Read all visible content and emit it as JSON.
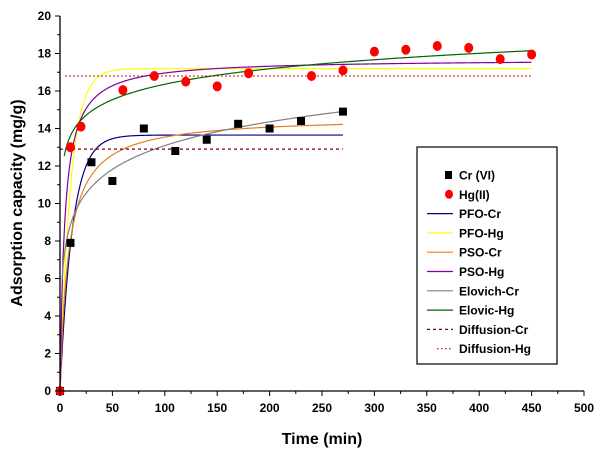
{
  "chart_data": {
    "type": "scatter",
    "title": "",
    "xlabel": "Time (min)",
    "ylabel": "Adsorption capacity (mg/g)",
    "xlim": [
      0,
      500
    ],
    "ylim": [
      0,
      20
    ],
    "xticks": [
      0,
      50,
      100,
      150,
      200,
      250,
      300,
      350,
      400,
      450,
      500
    ],
    "yticks": [
      0,
      2,
      4,
      6,
      8,
      10,
      12,
      14,
      16,
      18,
      20
    ],
    "grid": false,
    "legend_position": "right",
    "points": [
      {
        "name": "Cr (VI)",
        "marker": "square",
        "color": "#000000",
        "x": [
          0,
          10,
          30,
          50,
          80,
          110,
          140,
          170,
          200,
          230,
          270
        ],
        "y": [
          0,
          7.9,
          12.2,
          11.2,
          14.0,
          12.8,
          13.4,
          14.25,
          14.0,
          14.4,
          14.9
        ]
      },
      {
        "name": "Hg(II)",
        "marker": "circle",
        "color": "#ff0000",
        "x": [
          0,
          10,
          20,
          60,
          90,
          120,
          150,
          180,
          240,
          270,
          300,
          330,
          360,
          390,
          420,
          450
        ],
        "y": [
          0,
          13.0,
          14.1,
          16.05,
          16.8,
          16.5,
          16.25,
          16.95,
          16.8,
          17.1,
          18.1,
          18.2,
          18.4,
          18.3,
          17.7,
          17.95
        ]
      }
    ],
    "fits": [
      {
        "name": "PFO-Cr",
        "model": "pfo",
        "qe": 13.65,
        "k": 0.085,
        "xmax": 270,
        "color": "#000080",
        "style": "solid"
      },
      {
        "name": "PFO-Hg",
        "model": "pfo",
        "qe": 17.2,
        "k": 0.1,
        "xmax": 450,
        "color": "#ffff00",
        "style": "solid"
      },
      {
        "name": "PSO-Cr",
        "model": "pso",
        "qe": 14.65,
        "k": 0.00834,
        "xmax": 270,
        "color": "#e08020",
        "style": "solid"
      },
      {
        "name": "PSO-Hg",
        "model": "pso",
        "qe": 17.7,
        "k": 0.01294,
        "xmax": 450,
        "color": "#8000a0",
        "style": "solid"
      },
      {
        "name": "Elovich-Cr",
        "model": "elovich",
        "a": 4.66,
        "b": 1.83,
        "xmin": 2,
        "xmax": 270,
        "color": "#808080",
        "style": "solid"
      },
      {
        "name": "Elovic-Hg",
        "model": "elovich",
        "a": 10.88,
        "b": 1.19,
        "xmin": 4,
        "xmax": 450,
        "color": "#006400",
        "style": "solid"
      },
      {
        "name": "Diffusion-Cr",
        "model": "const",
        "value": 12.9,
        "xmin": 0,
        "xmax": 270,
        "color": "#800000",
        "style": "dash"
      },
      {
        "name": "Diffusion-Hg",
        "model": "const",
        "value": 16.8,
        "xmin": 5,
        "xmax": 450,
        "color": "#c00000",
        "style": "dot"
      }
    ],
    "legend": [
      "Cr (VI)",
      "Hg(II)",
      "PFO-Cr",
      "PFO-Hg",
      "PSO-Cr",
      "PSO-Hg",
      "Elovich-Cr",
      "Elovic-Hg",
      "Diffusion-Cr",
      "Diffusion-Hg"
    ]
  }
}
